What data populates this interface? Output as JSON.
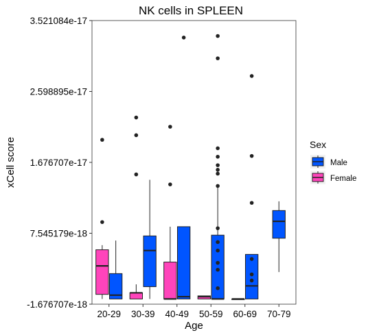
{
  "chart_data": {
    "type": "boxplot",
    "title": "NK cells in SPLEEN",
    "xlabel": "Age",
    "ylabel": "xCell score",
    "categories": [
      "20-29",
      "30-39",
      "40-49",
      "50-59",
      "60-69",
      "70-79"
    ],
    "y_ticks": [
      {
        "value": -1.676707e-18,
        "label": "-1.676707e-18"
      },
      {
        "value": 7.545179e-18,
        "label": "7.545179e-18"
      },
      {
        "value": 1.676707e-17,
        "label": "1.676707e-17"
      },
      {
        "value": 2.598895e-17,
        "label": "2.598895e-17"
      },
      {
        "value": 3.521084e-17,
        "label": "3.521084e-17"
      }
    ],
    "ylim": [
      -1.676707e-18,
      3.521084e-17
    ],
    "legend": {
      "title": "Sex",
      "position": "right",
      "entries": [
        {
          "label": "Male",
          "color": "#0055ff"
        },
        {
          "label": "Female",
          "color": "#ff44bb"
        }
      ]
    },
    "series": [
      {
        "name": "Female",
        "color": "#ff44bb",
        "boxes": [
          {
            "category": "20-29",
            "min": -1e-18,
            "q1": -4e-19,
            "median": 3.3e-18,
            "q3": 5.4e-18,
            "max": 6e-18,
            "outliers": [
              1.97e-17,
              9e-18
            ]
          },
          {
            "category": "30-39",
            "min": -1e-18,
            "q1": -1e-18,
            "median": -2e-19,
            "q3": -2e-19,
            "max": 9e-19,
            "outliers": [
              2.26e-17,
              2.03e-17,
              1.52e-17
            ]
          },
          {
            "category": "40-49",
            "min": -1e-18,
            "q1": -1e-18,
            "median": -1e-18,
            "q3": 3.8e-18,
            "max": 8.4e-18,
            "outliers": [
              2.14e-17,
              1.39e-17
            ]
          },
          {
            "category": "50-59",
            "min": -1e-18,
            "q1": -1e-18,
            "median": -7e-19,
            "q3": -6e-19,
            "max": -6e-19,
            "outliers": []
          },
          {
            "category": "60-69",
            "min": -1e-18,
            "q1": -1e-18,
            "median": -1e-18,
            "q3": -1e-18,
            "max": -1e-18,
            "outliers": []
          }
        ]
      },
      {
        "name": "Male",
        "color": "#0055ff",
        "boxes": [
          {
            "category": "20-29",
            "min": -1e-18,
            "q1": -1e-18,
            "median": -5e-19,
            "q3": 2.3e-18,
            "max": 6.6e-18,
            "outliers": []
          },
          {
            "category": "30-39",
            "min": -1e-18,
            "q1": 6e-19,
            "median": 5.3e-18,
            "q3": 7.2e-18,
            "max": 1.45e-17,
            "outliers": []
          },
          {
            "category": "40-49",
            "min": -1e-18,
            "q1": -1e-18,
            "median": -7e-19,
            "q3": 8.4e-18,
            "max": 8.4e-18,
            "outliers": [
              3.3e-17
            ]
          },
          {
            "category": "50-59",
            "min": -1e-18,
            "q1": -1e-18,
            "median": -1e-18,
            "q3": 7.3e-18,
            "max": 1.35e-17,
            "outliers": [
              3.32e-17,
              3.03e-17,
              1.86e-17,
              1.75e-17,
              1.64e-17,
              1.58e-17,
              1.53e-17,
              1.37e-17,
              8.2e-18,
              6.4e-18,
              5.3e-18,
              3.7e-18,
              2.8e-18,
              4e-19
            ]
          },
          {
            "category": "60-69",
            "min": -1e-18,
            "q1": -1e-18,
            "median": 7e-19,
            "q3": 4.8e-18,
            "max": 4.8e-18,
            "outliers": [
              2.8e-17,
              1.76e-17,
              1.15e-17,
              4.2e-18,
              2.2e-18,
              1.4e-18
            ]
          },
          {
            "category": "70-79",
            "min": 2.5e-18,
            "q1": 6.9e-18,
            "median": 9.1e-18,
            "q3": 1.05e-17,
            "max": 1.17e-17,
            "outliers": []
          }
        ]
      }
    ]
  }
}
